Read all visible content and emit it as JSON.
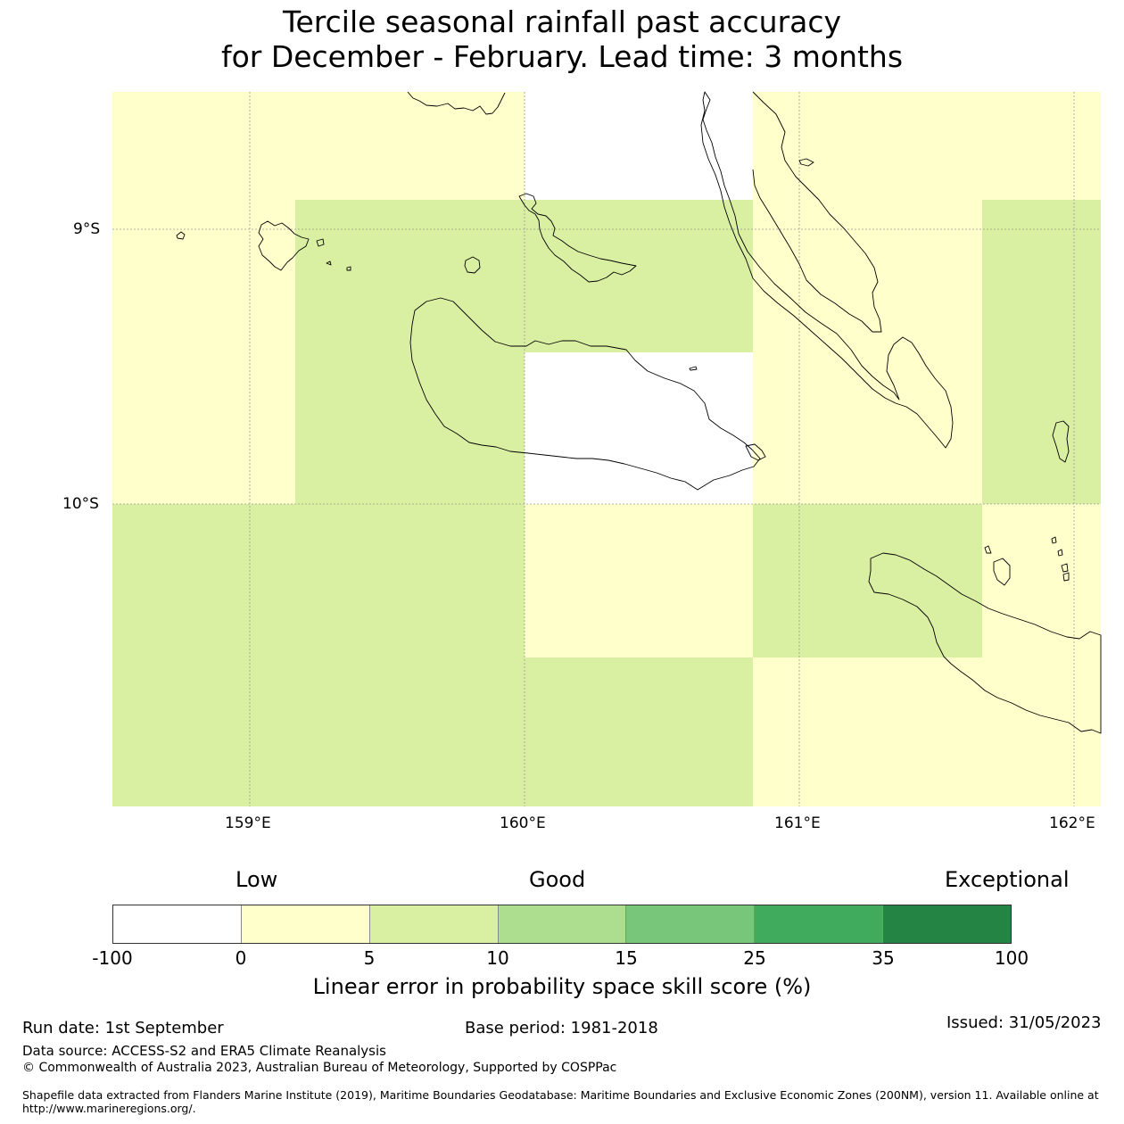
{
  "title": {
    "line1": "Tercile seasonal rainfall past accuracy",
    "line2": "for December - February. Lead time: 3 months"
  },
  "map": {
    "lat_labels": [
      "9°S",
      "10°S"
    ],
    "lon_labels": [
      "159°E",
      "160°E",
      "161°E",
      "162°E"
    ],
    "colors": {
      "none": "#ffffff",
      "c0_5": "#ffffcc",
      "c5_10": "#d9f0a3"
    }
  },
  "legend": {
    "low": "Low",
    "good": "Good",
    "exceptional": "Exceptional",
    "ticks": [
      "-100",
      "0",
      "5",
      "10",
      "15",
      "25",
      "35",
      "100"
    ],
    "colors": [
      "#ffffff",
      "#ffffcc",
      "#d9f0a3",
      "#addd8e",
      "#78c679",
      "#41ab5d",
      "#238443"
    ],
    "title": "Linear error in probability space skill score (%)"
  },
  "footer": {
    "run_date": "Run date: 1st September",
    "base_period": "Base period: 1981-2018",
    "issued": "Issued: 31/05/2023",
    "data_source": "Data source: ACCESS-S2 and ERA5 Climate Reanalysis",
    "copyright": "© Commonwealth of Australia 2023, Australian Bureau of Meteorology, Supported by COSPPac",
    "shapefile_1": "Shapefile data extracted from Flanders Marine Institute (2019), Maritime Boundaries Geodatabase: Maritime Boundaries and Exclusive Economic Zones (200NM), version 11. Available online at",
    "shapefile_2": "http://www.marineregions.org/."
  }
}
